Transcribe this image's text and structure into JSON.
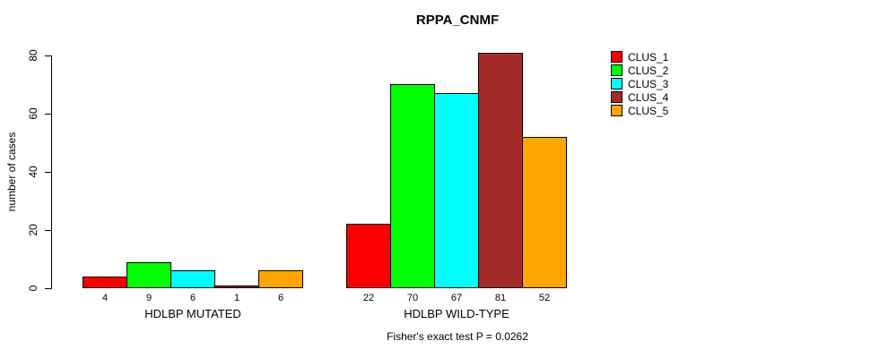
{
  "chart_data": {
    "type": "bar",
    "title": "RPPA_CNMF",
    "xlabel": "",
    "ylabel": "number of cases",
    "ylim": [
      0,
      80
    ],
    "yticks": [
      0,
      20,
      40,
      60,
      80
    ],
    "grid": false,
    "legend_position": "right",
    "categories": [
      "HDLBP MUTATED",
      "HDLBP WILD-TYPE"
    ],
    "series": [
      {
        "name": "CLUS_1",
        "color": "#FF0000",
        "values": [
          4,
          22
        ]
      },
      {
        "name": "CLUS_2",
        "color": "#00FF00",
        "values": [
          9,
          70
        ]
      },
      {
        "name": "CLUS_3",
        "color": "#00FFFF",
        "values": [
          6,
          67
        ]
      },
      {
        "name": "CLUS_4",
        "color": "#A52A2A",
        "values": [
          1,
          81
        ]
      },
      {
        "name": "CLUS_5",
        "color": "#FFA500",
        "values": [
          6,
          52
        ]
      }
    ],
    "bar_value_labels": [
      [
        4,
        9,
        6,
        1,
        6
      ],
      [
        22,
        70,
        67,
        81,
        52
      ]
    ],
    "footnote": "Fisher's exact test P = 0.0262",
    "axis_color": "#000000",
    "text_color": "#000000",
    "bar_border_color": "#000000"
  }
}
